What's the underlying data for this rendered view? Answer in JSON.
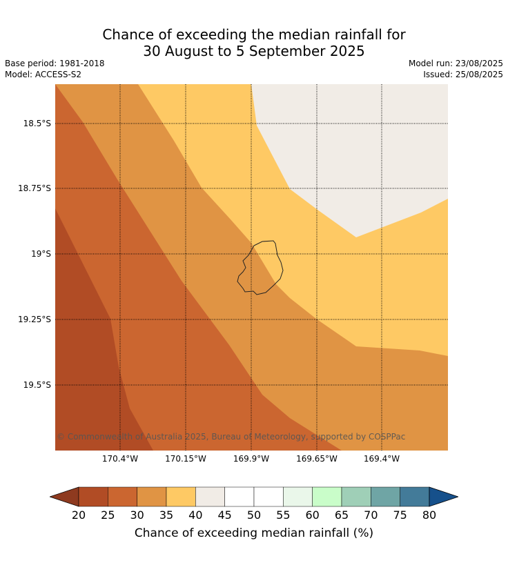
{
  "title_line1": "Chance of exceeding the median rainfall for",
  "title_line2": "30 August to 5 September 2025",
  "base_period": "Base period: 1981-2018",
  "model": "Model: ACCESS-S2",
  "model_run": "Model run: 23/08/2025",
  "issued": "Issued: 25/08/2025",
  "copyright": "© Commonwealth of Australia 2025, Bureau of Meteorology, supported by COSPPac",
  "lat_labels": [
    "18.5°S",
    "18.75°S",
    "19°S",
    "19.25°S",
    "19.5°S"
  ],
  "lon_labels": [
    "170.4°W",
    "170.15°W",
    "169.9°W",
    "169.65°W",
    "169.4°W"
  ],
  "colorbar": {
    "label": "Chance of exceeding median rainfall (%)",
    "ticks": [
      "20",
      "25",
      "30",
      "35",
      "40",
      "45",
      "50",
      "55",
      "60",
      "65",
      "70",
      "75",
      "80"
    ],
    "colors": {
      "under": "#8e3a1f",
      "bins": [
        "#b14c25",
        "#cb6630",
        "#e09444",
        "#fec964",
        "#f1ece6",
        "#ffffff",
        "#ffffff",
        "#eaf7ea",
        "#c9fdc9",
        "#9fcfb7",
        "#6fa5a5",
        "#437b99"
      ],
      "over": "#16508b"
    }
  },
  "map_colors": {
    "c20_25": "#b14c25",
    "c25_30": "#cb6630",
    "c30_35": "#e09444",
    "c35_40": "#fec964",
    "c40_45": "#f1ece6"
  }
}
